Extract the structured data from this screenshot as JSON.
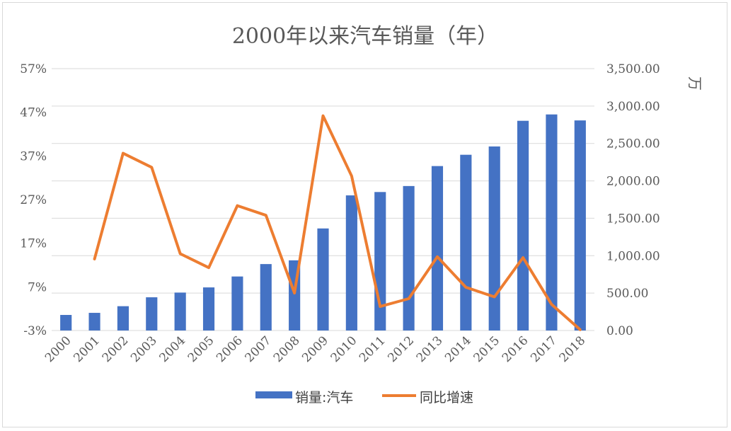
{
  "chart_data": {
    "type": "bar+line",
    "title": "2000年以来汽车销量（年）",
    "categories": [
      "2000",
      "2001",
      "2002",
      "2003",
      "2004",
      "2005",
      "2006",
      "2007",
      "2008",
      "2009",
      "2010",
      "2011",
      "2012",
      "2013",
      "2014",
      "2015",
      "2016",
      "2017",
      "2018"
    ],
    "series": [
      {
        "name": "销量:汽车",
        "type": "bar",
        "axis": "right",
        "color": "#4472C4",
        "values": [
          208,
          236,
          325,
          444,
          507,
          576,
          722,
          888,
          938,
          1364,
          1806,
          1851,
          1931,
          2198,
          2349,
          2460,
          2803,
          2888,
          2808
        ]
      },
      {
        "name": "同比增速",
        "type": "line",
        "axis": "left",
        "color": "#ED7D31",
        "values": [
          null,
          13.4,
          37.6,
          34.4,
          14.6,
          11.4,
          25.6,
          23.4,
          5.6,
          46.2,
          32.4,
          2.5,
          4.3,
          13.9,
          6.9,
          4.7,
          13.7,
          3.0,
          -2.8
        ]
      }
    ],
    "y_left": {
      "min": -3,
      "max": 57,
      "ticks": [
        "57%",
        "47%",
        "37%",
        "27%",
        "17%",
        "7%",
        "-3%"
      ]
    },
    "y_right": {
      "min": 0,
      "max": 3500,
      "ticks": [
        "3,500.00",
        "3,000.00",
        "2,500.00",
        "2,000.00",
        "1,500.00",
        "1,000.00",
        "500.00",
        "0.00"
      ],
      "unit": "万"
    },
    "grid": true,
    "legend": "bottom"
  }
}
